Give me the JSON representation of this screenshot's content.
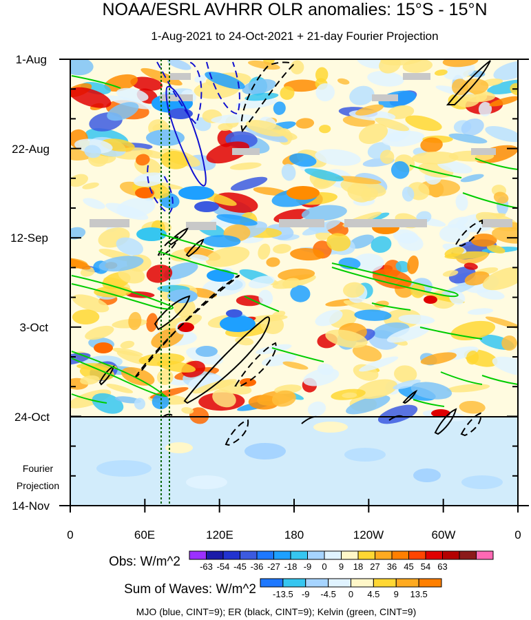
{
  "chart_data": {
    "type": "heatmap",
    "title": "NOAA/ESRL AVHRR OLR anomalies: 15°S - 15°N",
    "subtitle": "1-Aug-2021 to 24-Oct-2021 + 21-day Fourier Projection",
    "y_axis": {
      "tick_labels": [
        "1-Aug",
        "22-Aug",
        "12-Sep",
        "3-Oct",
        "24-Oct",
        "14-Nov"
      ],
      "projection_label_line1": "Fourier",
      "projection_label_line2": "Projection",
      "observation_end": "24-Oct",
      "range": [
        "1-Aug",
        "14-Nov"
      ]
    },
    "x_axis": {
      "tick_labels": [
        "0",
        "60E",
        "120E",
        "180",
        "120W",
        "60W",
        "0"
      ],
      "tick_longitudes": [
        0,
        60,
        120,
        180,
        240,
        300,
        360
      ],
      "range": [
        0,
        360
      ]
    },
    "reference_longitudes": [
      72,
      80
    ],
    "legend_obs": {
      "label": "Obs: W/m^2",
      "levels": [
        "-63",
        "-54",
        "-45",
        "-36",
        "-27",
        "-18",
        "-9",
        "0",
        "9",
        "18",
        "27",
        "36",
        "45",
        "54",
        "63"
      ],
      "colors": [
        "#9b30ff",
        "#1a1aa8",
        "#2233d0",
        "#3c5ae0",
        "#1e78ff",
        "#1ea0ff",
        "#36c6f0",
        "#a6d4ff",
        "#e0f3ff",
        "#fff7c8",
        "#ffd733",
        "#ffaa20",
        "#ff7f00",
        "#ff4500",
        "#e00000",
        "#b40000",
        "#8b1a1a",
        "#ff69b4"
      ]
    },
    "legend_waves": {
      "label": "Sum of Waves: W/m^2",
      "levels": [
        "-13.5",
        "-9",
        "-4.5",
        "0",
        "4.5",
        "9",
        "13.5"
      ],
      "colors": [
        "#1e78ff",
        "#36c6f0",
        "#a6d4ff",
        "#e0f3ff",
        "#fff7c8",
        "#ffd733",
        "#ffaa20",
        "#ff7f00"
      ]
    },
    "footer": "MJO (blue, CINT=9); ER (black, CINT=9); Kelvin (green, CINT=9)",
    "wave_contour_colors": {
      "MJO": "#1010d0",
      "ER": "#000000",
      "Kelvin": "#00cc00"
    },
    "missing_data_color": "#c8c8c8"
  }
}
